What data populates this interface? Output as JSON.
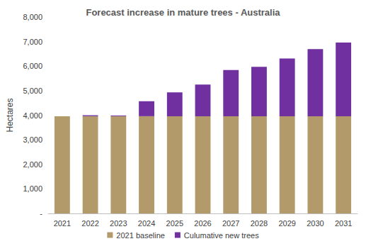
{
  "chart_data": {
    "type": "bar",
    "title": "Forecast increase in mature trees - Australia",
    "y_label": "Hectares",
    "categories": [
      "2021",
      "2022",
      "2023",
      "2024",
      "2025",
      "2026",
      "2027",
      "2028",
      "2029",
      "2030",
      "2031"
    ],
    "series": [
      {
        "name": "2021 baseline",
        "color": "#b39a6b",
        "values": [
          3960,
          3960,
          3960,
          3960,
          3960,
          3960,
          3960,
          3960,
          3960,
          3960,
          3960
        ]
      },
      {
        "name": "Culumative new trees",
        "color": "#7030a0",
        "values": [
          0,
          40,
          30,
          610,
          970,
          1290,
          1880,
          2010,
          2350,
          2730,
          3000
        ]
      }
    ],
    "ylim": [
      0,
      8000
    ],
    "yticks": [
      {
        "value": 0,
        "label": "-"
      },
      {
        "value": 1000,
        "label": "1,000"
      },
      {
        "value": 2000,
        "label": "2,000"
      },
      {
        "value": 3000,
        "label": "3,000"
      },
      {
        "value": 4000,
        "label": "4,000"
      },
      {
        "value": 5000,
        "label": "5,000"
      },
      {
        "value": 6000,
        "label": "6,000"
      },
      {
        "value": 7000,
        "label": "7,000"
      },
      {
        "value": 8000,
        "label": "8,000"
      }
    ],
    "stacked": true,
    "grid": false,
    "legend": "bottom"
  }
}
